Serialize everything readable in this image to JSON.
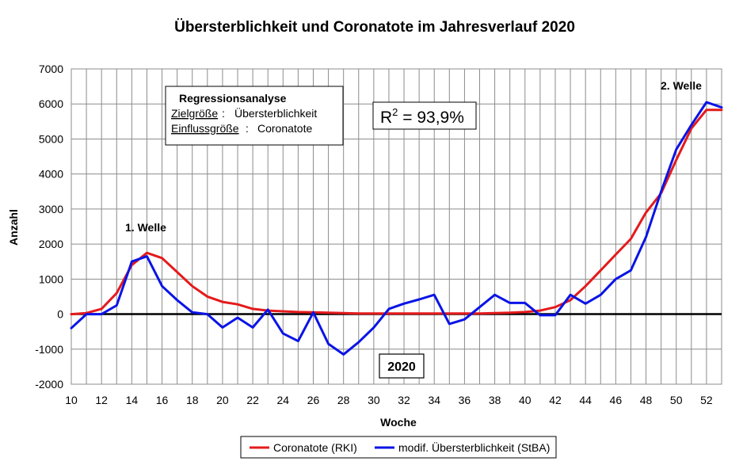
{
  "chart_data": {
    "type": "line",
    "title": "Übersterblichkeit und Coronatote im Jahresverlauf 2020",
    "xlabel": "Woche",
    "ylabel": "Anzahl",
    "xlim": [
      10,
      53
    ],
    "ylim": [
      -2000,
      7000
    ],
    "x_ticks": [
      "10",
      "12",
      "14",
      "16",
      "18",
      "20",
      "22",
      "24",
      "26",
      "28",
      "30",
      "32",
      "34",
      "36",
      "38",
      "40",
      "42",
      "44",
      "46",
      "48",
      "50",
      "52"
    ],
    "y_ticks": [
      "7000",
      "6000",
      "5000",
      "4000",
      "3000",
      "2000",
      "1000",
      "0",
      "-1000",
      "-2000"
    ],
    "grid": true,
    "legend_position": "bottom",
    "x": [
      10,
      11,
      12,
      13,
      14,
      15,
      16,
      17,
      18,
      19,
      20,
      21,
      22,
      23,
      24,
      25,
      26,
      27,
      28,
      29,
      30,
      31,
      32,
      33,
      34,
      35,
      36,
      37,
      38,
      39,
      40,
      41,
      42,
      43,
      44,
      45,
      46,
      47,
      48,
      49,
      50,
      51,
      52,
      53
    ],
    "series": [
      {
        "name": "Coronatote (RKI)",
        "color": "#e41a1c",
        "values": [
          0,
          30,
          150,
          600,
          1400,
          1750,
          1600,
          1200,
          800,
          500,
          350,
          280,
          150,
          100,
          80,
          60,
          50,
          40,
          30,
          20,
          20,
          20,
          20,
          20,
          20,
          20,
          20,
          20,
          30,
          40,
          60,
          100,
          200,
          400,
          800,
          1250,
          1700,
          2150,
          2900,
          3450,
          4400,
          5300,
          5830,
          5830
        ]
      },
      {
        "name": "modif. Übersterblichkeit (StBA)",
        "color": "#0a14e6",
        "values": [
          -400,
          0,
          0,
          250,
          1500,
          1650,
          800,
          400,
          50,
          0,
          -380,
          -100,
          -380,
          130,
          -550,
          -770,
          50,
          -850,
          -1150,
          -800,
          -380,
          150,
          300,
          420,
          550,
          -280,
          -150,
          200,
          550,
          320,
          320,
          -30,
          -30,
          550,
          300,
          550,
          1000,
          1250,
          2200,
          3500,
          4700,
          5400,
          6050,
          5900
        ]
      }
    ],
    "annotations": {
      "wave1": "1.  Welle",
      "wave2": "2.  Welle",
      "regression_title": "Regressionsanalyse",
      "target_label": "Zielgröße",
      "target_value": "Übersterblichkeit",
      "influence_label": "Einflussgröße",
      "influence_value": "Coronatote",
      "r2_prefix": "R",
      "r2_sup": "2",
      "r2_value": " = 93,9%",
      "year": "2020"
    }
  }
}
